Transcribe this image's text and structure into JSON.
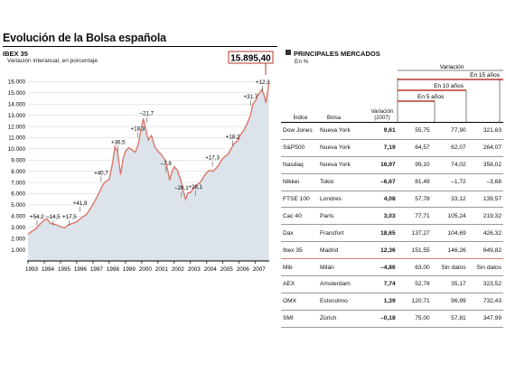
{
  "title": "Evolución de la Bolsa española",
  "left_panel": {
    "label": "IBEX 35",
    "subtitle": "Variación interanual, en porcentaje",
    "callout": "15.895,40"
  },
  "chart_data": {
    "type": "area",
    "series_name": "IBEX 35",
    "ylim": [
      0,
      17000
    ],
    "y_ticks": [
      1000,
      2000,
      3000,
      4000,
      5000,
      6000,
      7000,
      8000,
      9000,
      10000,
      11000,
      12000,
      13000,
      14000,
      15000,
      16000
    ],
    "y_tick_labels": [
      "1.000",
      "2.000",
      "3.000",
      "4.000",
      "5.000",
      "6.000",
      "7.000",
      "8.000",
      "9.000",
      "10.000",
      "11.000",
      "12.000",
      "13.000",
      "14.000",
      "15.000",
      "16.000"
    ],
    "x_labels": [
      "1993",
      "1994",
      "1995",
      "1996",
      "1997",
      "1998",
      "1999",
      "2000",
      "2001",
      "2002",
      "2003",
      "2004",
      "2005",
      "2006",
      "2007"
    ],
    "x_range": [
      1993,
      2007.85
    ],
    "points": [
      [
        1993.0,
        2400
      ],
      [
        1993.25,
        2650
      ],
      [
        1993.5,
        2900
      ],
      [
        1993.75,
        3300
      ],
      [
        1994.0,
        3650
      ],
      [
        1994.15,
        3750
      ],
      [
        1994.4,
        3350
      ],
      [
        1994.7,
        3250
      ],
      [
        1995.0,
        3050
      ],
      [
        1995.25,
        2950
      ],
      [
        1995.5,
        3250
      ],
      [
        1995.75,
        3350
      ],
      [
        1996.0,
        3500
      ],
      [
        1996.3,
        3850
      ],
      [
        1996.6,
        4150
      ],
      [
        1996.9,
        4800
      ],
      [
        1997.1,
        5300
      ],
      [
        1997.4,
        6150
      ],
      [
        1997.6,
        6800
      ],
      [
        1997.8,
        7100
      ],
      [
        1998.0,
        7300
      ],
      [
        1998.2,
        8700
      ],
      [
        1998.35,
        10200
      ],
      [
        1998.5,
        9800
      ],
      [
        1998.7,
        7700
      ],
      [
        1998.85,
        9100
      ],
      [
        1999.0,
        9800
      ],
      [
        1999.2,
        10100
      ],
      [
        1999.4,
        9900
      ],
      [
        1999.6,
        9700
      ],
      [
        1999.8,
        10500
      ],
      [
        1999.95,
        11700
      ],
      [
        2000.1,
        12700
      ],
      [
        2000.25,
        11700
      ],
      [
        2000.4,
        10800
      ],
      [
        2000.6,
        11200
      ],
      [
        2000.8,
        10200
      ],
      [
        2001.0,
        9800
      ],
      [
        2001.2,
        9500
      ],
      [
        2001.45,
        9000
      ],
      [
        2001.6,
        8100
      ],
      [
        2001.72,
        7200
      ],
      [
        2001.85,
        7900
      ],
      [
        2002.0,
        8400
      ],
      [
        2002.2,
        8100
      ],
      [
        2002.4,
        7200
      ],
      [
        2002.55,
        6300
      ],
      [
        2002.7,
        5500
      ],
      [
        2002.85,
        6100
      ],
      [
        2003.0,
        6100
      ],
      [
        2003.2,
        6500
      ],
      [
        2003.4,
        6800
      ],
      [
        2003.6,
        7000
      ],
      [
        2003.85,
        7600
      ],
      [
        2004.0,
        7900
      ],
      [
        2004.2,
        8100
      ],
      [
        2004.4,
        8000
      ],
      [
        2004.6,
        8300
      ],
      [
        2004.8,
        8700
      ],
      [
        2004.95,
        9100
      ],
      [
        2005.1,
        9300
      ],
      [
        2005.3,
        9500
      ],
      [
        2005.5,
        10000
      ],
      [
        2005.7,
        10500
      ],
      [
        2005.9,
        10700
      ],
      [
        2006.1,
        11300
      ],
      [
        2006.3,
        11700
      ],
      [
        2006.5,
        12300
      ],
      [
        2006.7,
        13000
      ],
      [
        2006.85,
        14000
      ],
      [
        2007.0,
        14300
      ],
      [
        2007.2,
        14900
      ],
      [
        2007.4,
        15300
      ],
      [
        2007.55,
        14700
      ],
      [
        2007.65,
        14100
      ],
      [
        2007.75,
        15100
      ],
      [
        2007.83,
        15895
      ]
    ],
    "annotations": [
      {
        "text": "+54,2",
        "x": 1993.55,
        "y": 3800
      },
      {
        "text": "–14,5",
        "x": 1994.55,
        "y": 3800
      },
      {
        "text": "+17,5",
        "x": 1995.55,
        "y": 3800
      },
      {
        "text": "+41,9",
        "x": 1996.2,
        "y": 5000
      },
      {
        "text": "+40,7",
        "x": 1997.5,
        "y": 7700
      },
      {
        "text": "+36,5",
        "x": 1998.55,
        "y": 10450
      },
      {
        "text": "+18,3",
        "x": 1999.75,
        "y": 11650
      },
      {
        "text": "–21,7",
        "x": 2000.3,
        "y": 13000
      },
      {
        "text": "–7,8",
        "x": 2001.5,
        "y": 8550
      },
      {
        "text": "–28,1",
        "x": 2002.45,
        "y": 6350
      },
      {
        "text": "+28,1",
        "x": 2003.3,
        "y": 6450
      },
      {
        "text": "+17,3",
        "x": 2004.35,
        "y": 9050
      },
      {
        "text": "+18,2",
        "x": 2005.6,
        "y": 10900
      },
      {
        "text": "+31,7",
        "x": 2006.7,
        "y": 14500
      },
      {
        "text": "+12,3",
        "x": 2007.45,
        "y": 15800
      }
    ]
  },
  "right_panel": {
    "label": "PRINCIPALES MERCADOS",
    "subtitle": "En %",
    "group_header": "Variación",
    "period_15": "En 15 años",
    "period_10": "En 10 años",
    "period_5": "En 5 años",
    "columns": [
      "Índice",
      "Bolsa",
      "Variación (2007)",
      "",
      "",
      ""
    ],
    "rows": [
      {
        "index": "Dow Jones",
        "exchange": "Nueva York",
        "v2007": "9,61",
        "v5": "55,75",
        "v10": "77,90",
        "v15": "321,63"
      },
      {
        "index": "S&P500",
        "exchange": "Nueva York",
        "v2007": "7,19",
        "v5": "64,57",
        "v10": "62,07",
        "v15": "264,07"
      },
      {
        "index": "Nasdaq",
        "exchange": "Nueva York",
        "v2007": "16,97",
        "v5": "99,10",
        "v10": "74,02",
        "v15": "358,02"
      },
      {
        "index": "Nikkei",
        "exchange": "Tokio",
        "v2007": "–6,67",
        "v5": "81,49",
        "v10": "–1,72",
        "v15": "–3,68"
      },
      {
        "index": "FTSE 100",
        "exchange": "Londres",
        "v2007": "4,08",
        "v5": "57,78",
        "v10": "33,12",
        "v15": "139,57"
      },
      {
        "index": "Cac 40",
        "exchange": "París",
        "v2007": "3,03",
        "v5": "77,71",
        "v10": "105,24",
        "v15": "219,32"
      },
      {
        "index": "Dax",
        "exchange": "Francfort",
        "v2007": "18,65",
        "v5": "137,27",
        "v10": "104,69",
        "v15": "426,32"
      },
      {
        "index": "Ibex 35",
        "exchange": "Madrid",
        "v2007": "12,36",
        "v5": "151,55",
        "v10": "146,26",
        "v15": "649,82",
        "highlight": true
      },
      {
        "index": "Mib",
        "exchange": "Milán",
        "v2007": "–4,86",
        "v5": "63,00",
        "v10": "Sin datos",
        "v15": "Sin datos"
      },
      {
        "index": "AEX",
        "exchange": "Amsterdam",
        "v2007": "7,74",
        "v5": "52,78",
        "v10": "35,17",
        "v15": "323,52"
      },
      {
        "index": "OMX",
        "exchange": "Estocolmo",
        "v2007": "1,39",
        "v5": "120,71",
        "v10": "96,99",
        "v15": "732,43"
      },
      {
        "index": "SMI",
        "exchange": "Zúrich",
        "v2007": "–0,18",
        "v5": "75,00",
        "v10": "57,81",
        "v15": "347,99"
      }
    ]
  },
  "colors": {
    "line": "#d9786a",
    "fill": "#dde3ea",
    "accent": "#b33a2a",
    "grid": "#cfcfcf"
  }
}
